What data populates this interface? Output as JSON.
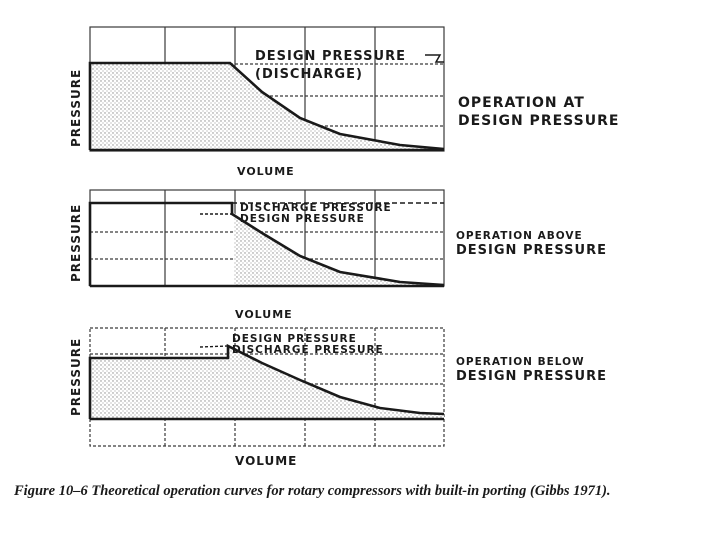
{
  "panels": [
    {
      "ylabel": "PRESSURE",
      "xlabel": "VOLUME",
      "annotations": [
        "DESIGN PRESSURE",
        "(DISCHARGE)"
      ],
      "side_label": [
        "OPERATION AT",
        "DESIGN PRESSURE"
      ]
    },
    {
      "ylabel": "PRESSURE",
      "xlabel": "VOLUME",
      "annotations": [
        "DISCHARGE PRESSURE",
        "DESIGN PRESSURE"
      ],
      "side_label": [
        "OPERATION ABOVE",
        "DESIGN PRESSURE"
      ]
    },
    {
      "ylabel": "PRESSURE",
      "xlabel": "VOLUME",
      "annotations": [
        "DESIGN PRESSURE",
        "DISCHARGE PRESSURE"
      ],
      "side_label": [
        "OPERATION BELOW",
        "DESIGN PRESSURE"
      ]
    }
  ],
  "caption": "Figure 10–6 Theoretical operation curves for rotary compressors with built-in porting (Gibbs 1971).",
  "colors": {
    "ink": "#1a1a1a",
    "grid": "#3a3a3a",
    "stipple": "#9a9a9a"
  }
}
